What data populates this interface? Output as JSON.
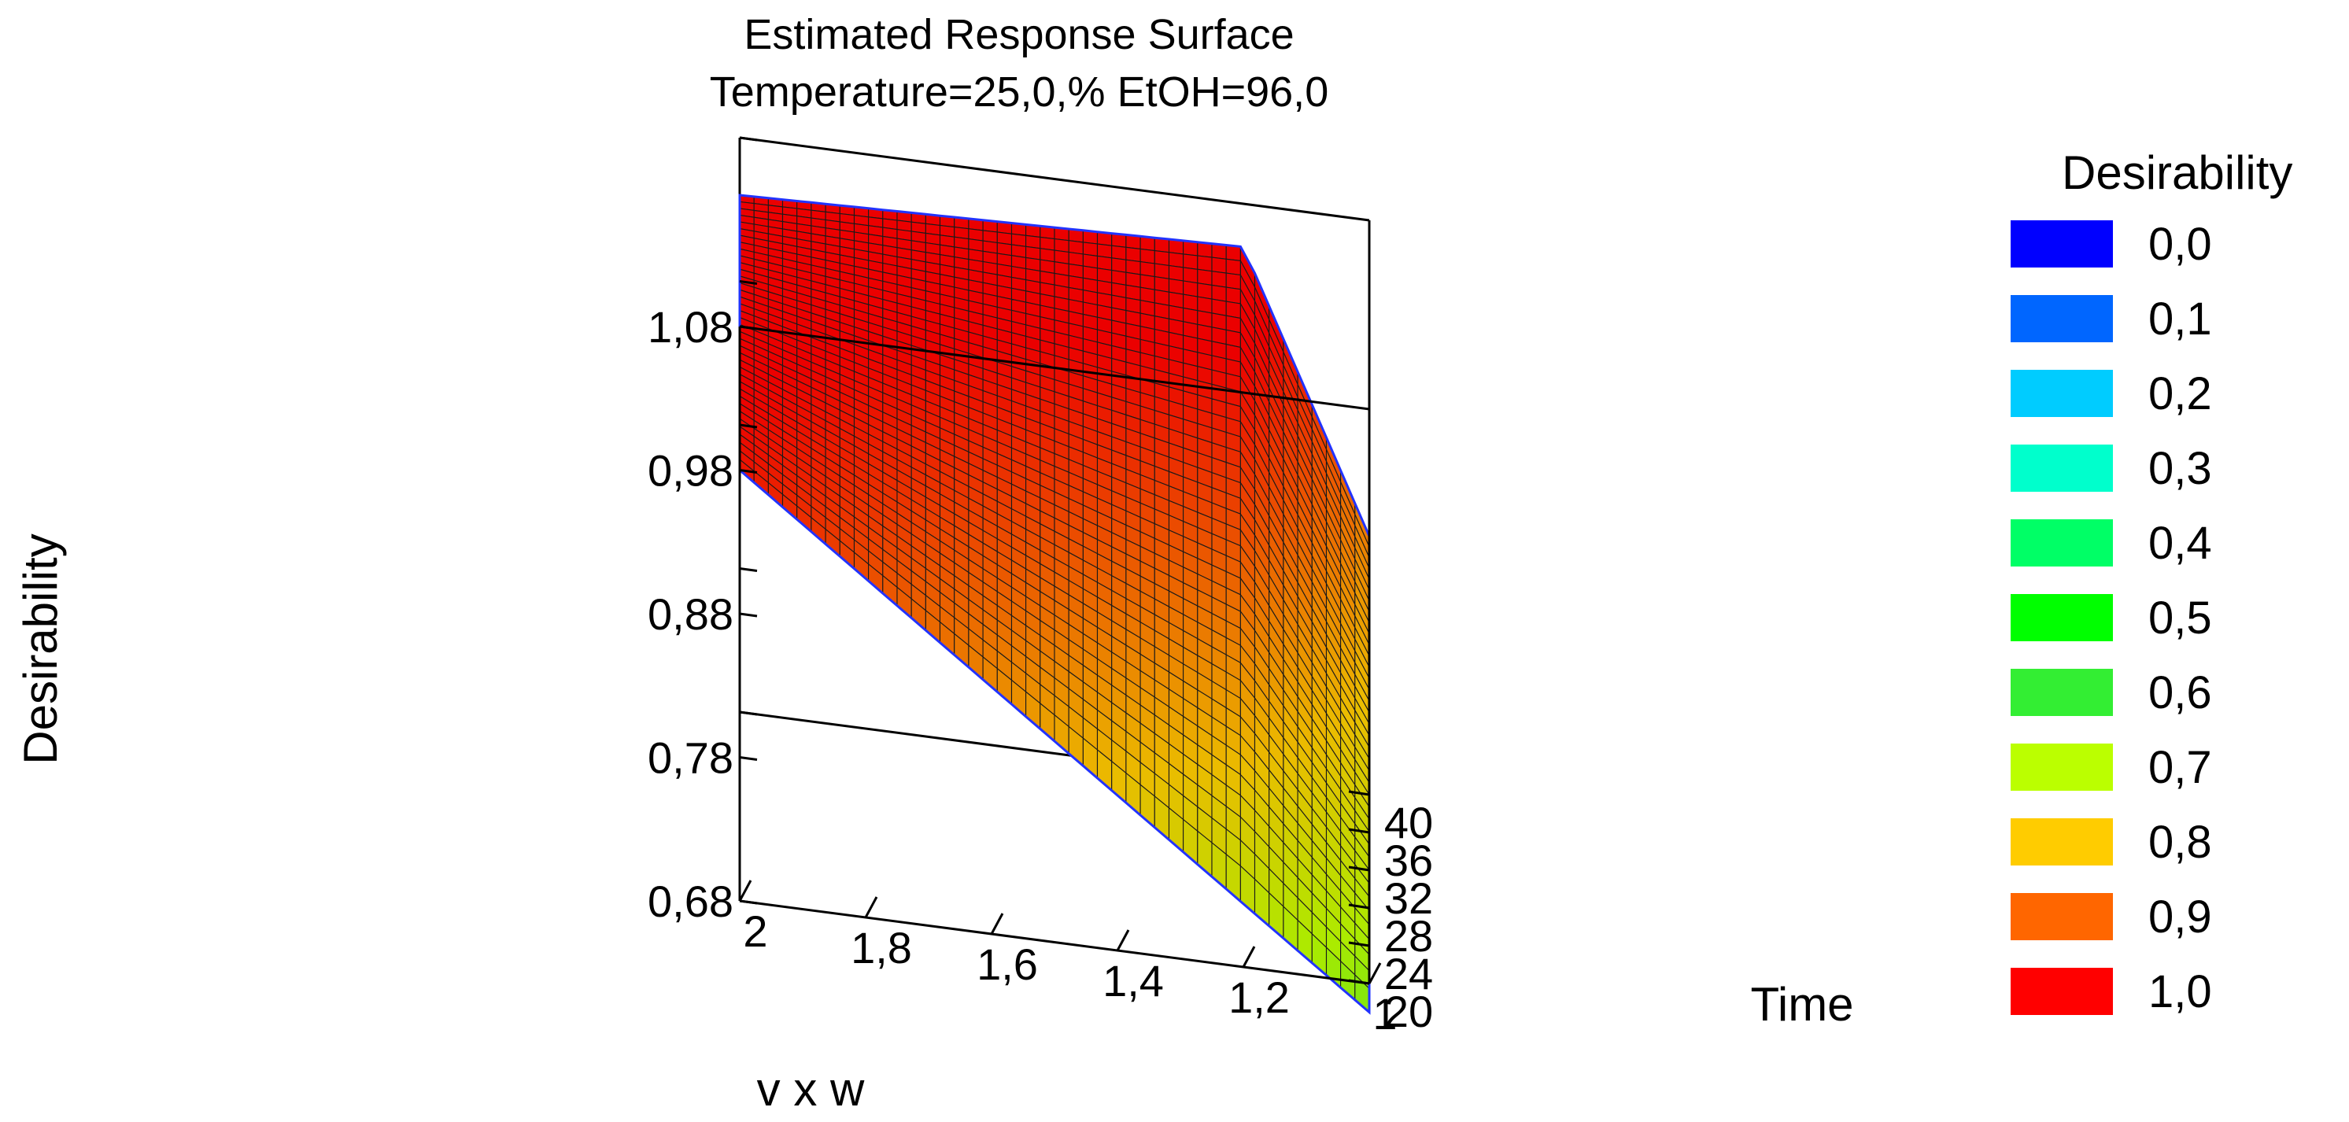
{
  "chart_data": {
    "type": "surface3d",
    "title": "Estimated Response Surface",
    "subtitle": "Temperature=25,0,% EtOH=96,0",
    "xlabel": "v x w",
    "ylabel": "Time",
    "zlabel": "Desirability",
    "x_ticks": [
      "2",
      "1,8",
      "1,6",
      "1,4",
      "1,2",
      "1"
    ],
    "x_range": [
      1,
      2
    ],
    "y_ticks": [
      "20",
      "24",
      "28",
      "32",
      "36",
      "40"
    ],
    "y_range": [
      20,
      40
    ],
    "z_ticks": [
      "0,68",
      "0,78",
      "0,88",
      "0,98",
      "1,08"
    ],
    "z_range": [
      0.68,
      1.08
    ],
    "corner_values": {
      "x2_t20": 0.98,
      "x2_t40": 1.04,
      "x1_2_t40": 1.05,
      "x1_t40": 0.86,
      "x1_t20": 0.66
    },
    "legend": {
      "title": "Desirability",
      "position": "right",
      "entries": [
        {
          "label": "0,0",
          "color": "#0000ff"
        },
        {
          "label": "0,1",
          "color": "#0066ff"
        },
        {
          "label": "0,2",
          "color": "#00ccff"
        },
        {
          "label": "0,3",
          "color": "#00ffcc"
        },
        {
          "label": "0,4",
          "color": "#00ff66"
        },
        {
          "label": "0,5",
          "color": "#00ff00"
        },
        {
          "label": "0,6",
          "color": "#33ee33"
        },
        {
          "label": "0,7",
          "color": "#bbff00"
        },
        {
          "label": "0,8",
          "color": "#ffcc00"
        },
        {
          "label": "0,9",
          "color": "#ff6600"
        },
        {
          "label": "1,0",
          "color": "#ff0000"
        }
      ]
    }
  }
}
